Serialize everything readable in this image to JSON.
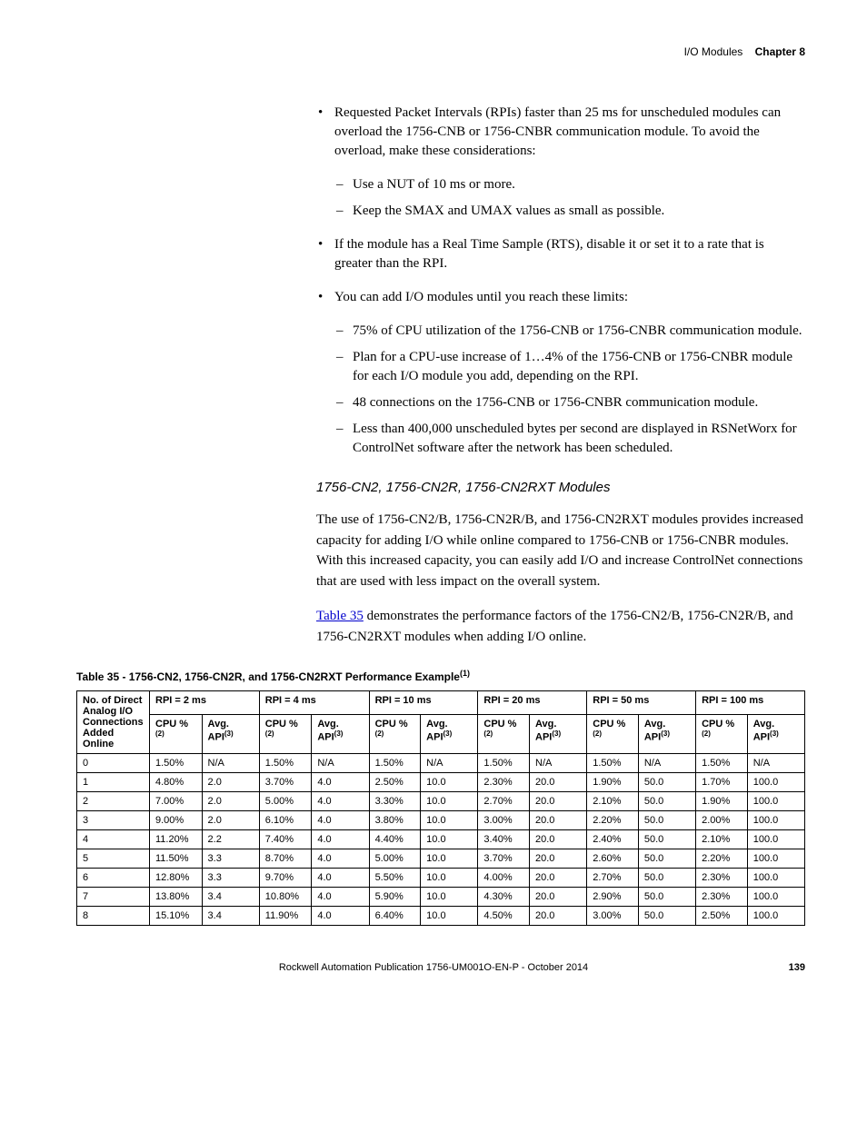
{
  "header": {
    "section": "I/O Modules",
    "chapter": "Chapter 8"
  },
  "bullets": {
    "b1": "Requested Packet Intervals (RPIs) faster than 25 ms for unscheduled modules can overload the 1756-CNB or 1756-CNBR communication module. To avoid the overload, make these considerations:",
    "b1_d1": "Use a NUT of 10 ms or more.",
    "b1_d2": "Keep the SMAX and UMAX values as small as possible.",
    "b2": "If the module has a Real Time Sample (RTS), disable it or set it to a rate that is greater than the RPI.",
    "b3": "You can add I/O modules until you reach these limits:",
    "b3_d1": "75% of CPU utilization of the 1756-CNB or 1756-CNBR communication module.",
    "b3_d2": "Plan for a CPU-use increase of 1…4% of the 1756-CNB or 1756-CNBR module for each I/O module you add, depending on the RPI.",
    "b3_d3": "48 connections on the 1756-CNB or 1756-CNBR communication module.",
    "b3_d4": "Less than 400,000 unscheduled bytes per second are displayed in RSNetWorx for ControlNet software after the network has been scheduled."
  },
  "subheading": "1756-CN2, 1756-CN2R, 1756-CN2RXT Modules",
  "para1": "The use of 1756-CN2/B, 1756-CN2R/B, and 1756-CN2RXT modules provides increased capacity for adding I/O while online compared to 1756-CNB or 1756-CNBR modules. With this increased capacity, you can easily add I/O and increase ControlNet connections that are used with less impact on the overall system.",
  "para2_link": "Table 35",
  "para2_rest": " demonstrates the performance factors of the 1756-CN2/B, 1756-CN2R/B, and 1756-CN2RXT modules when adding I/O online.",
  "table_title": "Table 35 - 1756-CN2, 1756-CN2R, and 1756-CN2RXT Performance Example",
  "table_title_sup": "(1)",
  "table": {
    "row_header": "No. of Direct Analog I/O Connections Added Online",
    "rpi_groups": [
      "RPI = 2 ms",
      "RPI = 4 ms",
      "RPI = 10 ms",
      "RPI = 20 ms",
      "RPI = 50 ms",
      "RPI = 100 ms"
    ],
    "sub_cpu": "CPU %",
    "sub_cpu_sup": "(2)",
    "sub_api": "Avg. API",
    "sub_api_sup": "(3)",
    "rows": [
      {
        "n": "0",
        "vals": [
          "1.50%",
          "N/A",
          "1.50%",
          "N/A",
          "1.50%",
          "N/A",
          "1.50%",
          "N/A",
          "1.50%",
          "N/A",
          "1.50%",
          "N/A"
        ]
      },
      {
        "n": "1",
        "vals": [
          "4.80%",
          "2.0",
          "3.70%",
          "4.0",
          "2.50%",
          "10.0",
          "2.30%",
          "20.0",
          "1.90%",
          "50.0",
          "1.70%",
          "100.0"
        ]
      },
      {
        "n": "2",
        "vals": [
          "7.00%",
          "2.0",
          "5.00%",
          "4.0",
          "3.30%",
          "10.0",
          "2.70%",
          "20.0",
          "2.10%",
          "50.0",
          "1.90%",
          "100.0"
        ]
      },
      {
        "n": "3",
        "vals": [
          "9.00%",
          "2.0",
          "6.10%",
          "4.0",
          "3.80%",
          "10.0",
          "3.00%",
          "20.0",
          "2.20%",
          "50.0",
          "2.00%",
          "100.0"
        ]
      },
      {
        "n": "4",
        "vals": [
          "11.20%",
          "2.2",
          "7.40%",
          "4.0",
          "4.40%",
          "10.0",
          "3.40%",
          "20.0",
          "2.40%",
          "50.0",
          "2.10%",
          "100.0"
        ]
      },
      {
        "n": "5",
        "vals": [
          "11.50%",
          "3.3",
          "8.70%",
          "4.0",
          "5.00%",
          "10.0",
          "3.70%",
          "20.0",
          "2.60%",
          "50.0",
          "2.20%",
          "100.0"
        ]
      },
      {
        "n": "6",
        "vals": [
          "12.80%",
          "3.3",
          "9.70%",
          "4.0",
          "5.50%",
          "10.0",
          "4.00%",
          "20.0",
          "2.70%",
          "50.0",
          "2.30%",
          "100.0"
        ]
      },
      {
        "n": "7",
        "vals": [
          "13.80%",
          "3.4",
          "10.80%",
          "4.0",
          "5.90%",
          "10.0",
          "4.30%",
          "20.0",
          "2.90%",
          "50.0",
          "2.30%",
          "100.0"
        ]
      },
      {
        "n": "8",
        "vals": [
          "15.10%",
          "3.4",
          "11.90%",
          "4.0",
          "6.40%",
          "10.0",
          "4.50%",
          "20.0",
          "3.00%",
          "50.0",
          "2.50%",
          "100.0"
        ]
      }
    ]
  },
  "footer": {
    "pub": "Rockwell Automation Publication 1756-UM001O-EN-P - October 2014",
    "page": "139"
  }
}
